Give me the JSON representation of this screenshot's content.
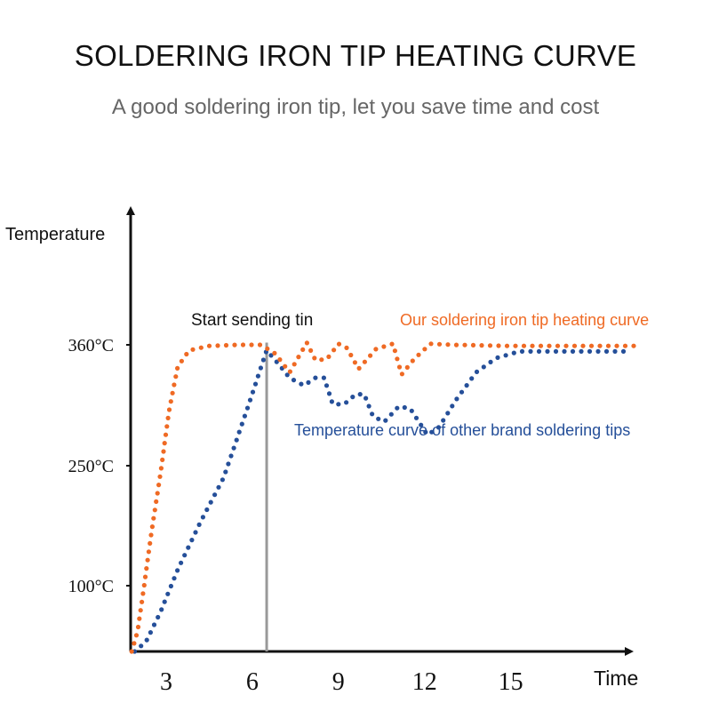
{
  "header": {
    "title": "SOLDERING IRON TIP HEATING CURVE",
    "subtitle": "A good soldering iron tip, let you save time and cost"
  },
  "colors": {
    "ours": "#ef6a24",
    "other": "#254f99",
    "axis": "#111111",
    "marker": "#999999"
  },
  "chart_data": {
    "type": "line",
    "title": "SOLDERING IRON TIP HEATING CURVE",
    "subtitle": "A good soldering iron tip, let you save time and cost",
    "xlabel": "Time",
    "ylabel": "Temperature",
    "x_ticks": [
      3,
      6,
      9,
      12,
      15
    ],
    "y_ticks": [
      {
        "value": 100,
        "label": "100°C"
      },
      {
        "value": 250,
        "label": "250°C"
      },
      {
        "value": 360,
        "label": "360°C"
      }
    ],
    "annotation": {
      "text": "Start sending tin",
      "x": 6.5
    },
    "series": [
      {
        "name": "Our soldering iron tip heating curve",
        "points": [
          [
            1.8,
            0
          ],
          [
            2.0,
            30
          ],
          [
            2.2,
            90
          ],
          [
            2.5,
            170
          ],
          [
            2.8,
            240
          ],
          [
            3.1,
            300
          ],
          [
            3.4,
            340
          ],
          [
            3.8,
            355
          ],
          [
            4.5,
            359
          ],
          [
            5.5,
            360
          ],
          [
            6.3,
            360
          ],
          [
            6.8,
            352
          ],
          [
            7.3,
            335
          ],
          [
            7.9,
            362
          ],
          [
            8.2,
            346
          ],
          [
            8.6,
            347
          ],
          [
            9.0,
            361
          ],
          [
            9.3,
            357
          ],
          [
            9.7,
            338
          ],
          [
            10.3,
            356
          ],
          [
            10.9,
            361
          ],
          [
            11.2,
            333
          ],
          [
            11.6,
            346
          ],
          [
            12.2,
            361
          ],
          [
            13.0,
            360
          ],
          [
            15.0,
            359
          ],
          [
            19.5,
            359
          ]
        ]
      },
      {
        "name": "Temperature curve of other brand soldering tips",
        "points": [
          [
            1.9,
            0
          ],
          [
            2.3,
            15
          ],
          [
            2.8,
            60
          ],
          [
            3.4,
            120
          ],
          [
            4.2,
            180
          ],
          [
            5.0,
            235
          ],
          [
            5.8,
            300
          ],
          [
            6.5,
            355
          ],
          [
            6.9,
            343
          ],
          [
            7.3,
            330
          ],
          [
            7.8,
            323
          ],
          [
            8.2,
            330
          ],
          [
            8.5,
            330
          ],
          [
            8.8,
            306
          ],
          [
            9.2,
            306
          ],
          [
            9.6,
            315
          ],
          [
            9.9,
            315
          ],
          [
            10.2,
            295
          ],
          [
            10.6,
            290
          ],
          [
            11.1,
            304
          ],
          [
            11.5,
            302
          ],
          [
            12.1,
            278
          ],
          [
            12.5,
            285
          ],
          [
            13.1,
            310
          ],
          [
            13.8,
            335
          ],
          [
            14.5,
            348
          ],
          [
            15.3,
            354
          ],
          [
            17.0,
            354
          ],
          [
            19.2,
            354
          ]
        ]
      }
    ]
  }
}
